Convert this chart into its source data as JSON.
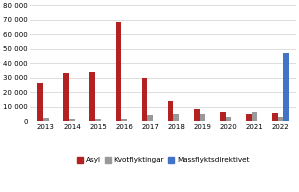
{
  "years": [
    2013,
    2014,
    2015,
    2016,
    2017,
    2018,
    2019,
    2020,
    2021,
    2022
  ],
  "asyl": [
    26000,
    33000,
    34000,
    68500,
    30000,
    14000,
    8500,
    6000,
    5000,
    5500
  ],
  "kvotflyktingar": [
    2000,
    1500,
    1500,
    1500,
    4500,
    5000,
    5000,
    3000,
    6500,
    3000
  ],
  "massflyktsdirektivet": [
    0,
    0,
    0,
    0,
    0,
    0,
    0,
    0,
    0,
    47000
  ],
  "asyl_color": "#b22222",
  "kvot_color": "#999999",
  "mass_color": "#4472c4",
  "ylabel_values": [
    "0",
    "10 000",
    "20 000",
    "30 000",
    "40 000",
    "50 000",
    "60 000",
    "70 000",
    "80 000"
  ],
  "yticks": [
    0,
    10000,
    20000,
    30000,
    40000,
    50000,
    60000,
    70000,
    80000
  ],
  "legend_labels": [
    "Asyl",
    "Kvotflyktingar",
    "Massflyktsdirektivet"
  ],
  "background_color": "#ffffff",
  "bar_width": 0.22
}
